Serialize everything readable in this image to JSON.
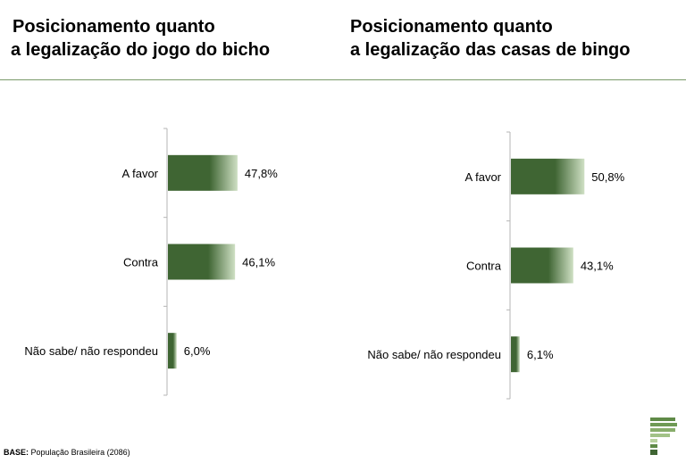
{
  "titles": {
    "left_line1": "Posicionamento quanto",
    "left_line2": "a legalização do jogo do bicho",
    "right_line1": "Posicionamento quanto",
    "right_line2": "a legalização das casas de bingo"
  },
  "footer": {
    "base_label": "BASE:",
    "base_text": "População Brasileira (2086)"
  },
  "colors": {
    "bar_dark": "#3f6533",
    "bar_light": "#cfe0c4",
    "rule": "#7a9a6a",
    "axis": "#b5b5b5"
  },
  "chart_data": [
    {
      "type": "bar",
      "orientation": "horizontal",
      "title": "Posicionamento quanto a legalização do jogo do bicho",
      "categories": [
        "A favor",
        "Contra",
        "Não sabe/ não respondeu"
      ],
      "values": [
        47.8,
        46.1,
        6.0
      ],
      "value_labels": [
        "47,8%",
        "46,1%",
        "6,0%"
      ],
      "unit": "%",
      "xlim": [
        0,
        100
      ],
      "grid": false,
      "legend": "none"
    },
    {
      "type": "bar",
      "orientation": "horizontal",
      "title": "Posicionamento quanto a legalização das casas de bingo",
      "categories": [
        "A favor",
        "Contra",
        "Não sabe/ não respondeu"
      ],
      "values": [
        50.8,
        43.1,
        6.1
      ],
      "value_labels": [
        "50,8%",
        "43,1%",
        "6,1%"
      ],
      "unit": "%",
      "xlim": [
        0,
        100
      ],
      "grid": false,
      "legend": "none"
    }
  ]
}
